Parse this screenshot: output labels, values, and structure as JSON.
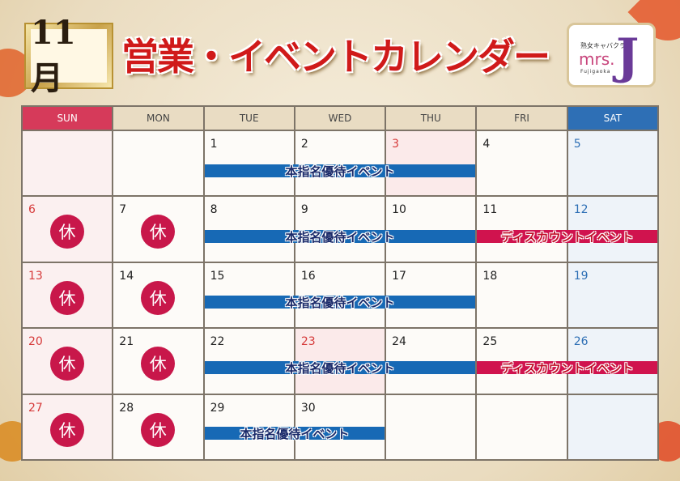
{
  "header": {
    "month": "11月",
    "title": "営業・イベントカレンダー",
    "logo": {
      "tagline": "熟女キャバクラ",
      "brand": "mrs.",
      "location": "Fujigaoka",
      "letter": "J"
    }
  },
  "colors": {
    "sun": "#d63a5a",
    "sat": "#2e6fb5",
    "closed": "#c8174a",
    "event_blue": "#1769b5",
    "event_red": "#d0134e"
  },
  "weekdays": [
    "SUN",
    "MON",
    "TUE",
    "WED",
    "THU",
    "FRI",
    "SAT"
  ],
  "closed_label": "休",
  "weeks": [
    {
      "days": [
        "",
        "",
        "1",
        "2",
        "3",
        "4",
        "5"
      ],
      "closed": [],
      "holidays": [
        "3"
      ],
      "events": [
        {
          "label": "本指名優待イベント",
          "color": "blue",
          "from": 2,
          "to": 4
        }
      ]
    },
    {
      "days": [
        "6",
        "7",
        "8",
        "9",
        "10",
        "11",
        "12"
      ],
      "closed": [
        0,
        1
      ],
      "holidays": [],
      "events": [
        {
          "label": "本指名優待イベント",
          "color": "blue",
          "from": 2,
          "to": 4
        },
        {
          "label": "ディスカウントイベント",
          "color": "red",
          "from": 5,
          "to": 6
        }
      ]
    },
    {
      "days": [
        "13",
        "14",
        "15",
        "16",
        "17",
        "18",
        "19"
      ],
      "closed": [
        0,
        1
      ],
      "holidays": [],
      "events": [
        {
          "label": "本指名優待イベント",
          "color": "blue",
          "from": 2,
          "to": 4
        }
      ]
    },
    {
      "days": [
        "20",
        "21",
        "22",
        "23",
        "24",
        "25",
        "26"
      ],
      "closed": [
        0,
        1
      ],
      "holidays": [
        "23"
      ],
      "events": [
        {
          "label": "本指名優待イベント",
          "color": "blue",
          "from": 2,
          "to": 4
        },
        {
          "label": "ディスカウントイベント",
          "color": "red",
          "from": 5,
          "to": 6
        }
      ]
    },
    {
      "days": [
        "27",
        "28",
        "29",
        "30",
        "",
        "",
        ""
      ],
      "closed": [
        0,
        1
      ],
      "holidays": [],
      "events": [
        {
          "label": "本指名優待イベント",
          "color": "blue",
          "from": 2,
          "to": 3
        }
      ]
    }
  ]
}
